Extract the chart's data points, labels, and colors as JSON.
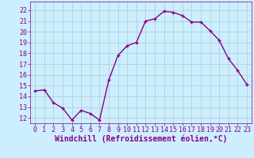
{
  "x": [
    0,
    1,
    2,
    3,
    4,
    5,
    6,
    7,
    8,
    9,
    10,
    11,
    12,
    13,
    14,
    15,
    16,
    17,
    18,
    19,
    20,
    21,
    22,
    23
  ],
  "y": [
    14.5,
    14.6,
    13.4,
    12.9,
    11.8,
    12.7,
    12.4,
    11.8,
    15.5,
    17.8,
    18.7,
    19.0,
    21.0,
    21.2,
    21.9,
    21.8,
    21.5,
    20.9,
    20.9,
    20.1,
    19.2,
    17.5,
    16.4,
    15.1
  ],
  "line_color": "#880088",
  "marker": "+",
  "marker_color": "#880088",
  "background_color": "#cceeff",
  "grid_color": "#aacccc",
  "xlabel": "Windchill (Refroidissement éolien,°C)",
  "xlabel_color": "#880088",
  "ylim": [
    11.5,
    22.8
  ],
  "xlim": [
    -0.5,
    23.5
  ],
  "yticks": [
    12,
    13,
    14,
    15,
    16,
    17,
    18,
    19,
    20,
    21,
    22
  ],
  "xticks": [
    0,
    1,
    2,
    3,
    4,
    5,
    6,
    7,
    8,
    9,
    10,
    11,
    12,
    13,
    14,
    15,
    16,
    17,
    18,
    19,
    20,
    21,
    22,
    23
  ],
  "tick_color": "#880088",
  "tick_fontsize": 6,
  "xlabel_fontsize": 7,
  "line_width": 1.0,
  "marker_size": 3
}
